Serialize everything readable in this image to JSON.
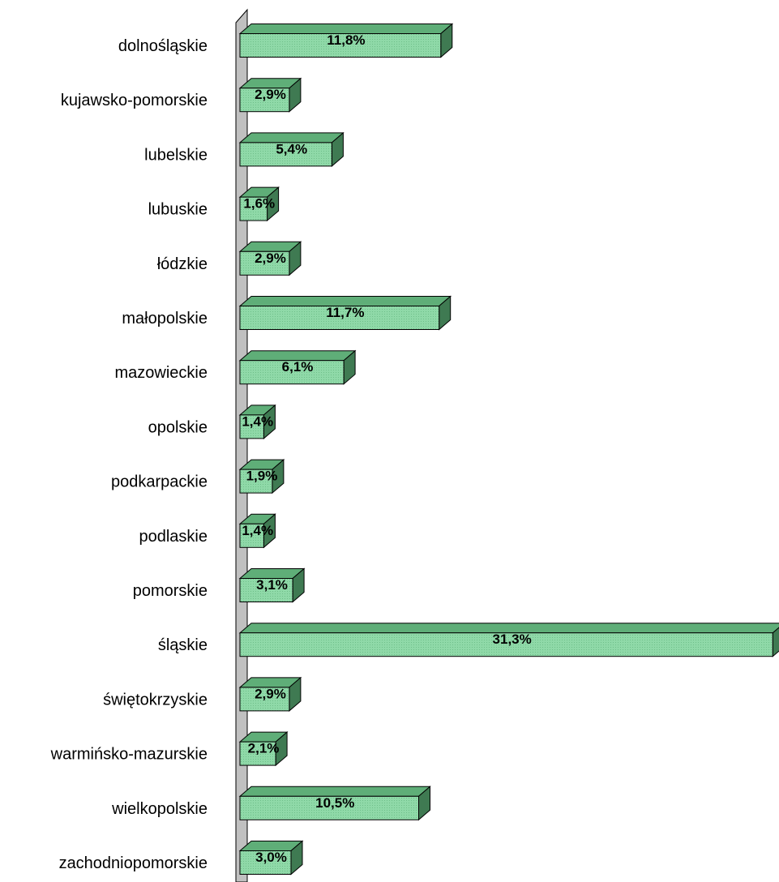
{
  "chart_data": {
    "type": "bar",
    "orientation": "horizontal",
    "style": "3d",
    "categories": [
      "dolnośląskie",
      "kujawsko-pomorskie",
      "lubelskie",
      "lubuskie",
      "łódzkie",
      "małopolskie",
      "mazowieckie",
      "opolskie",
      "podkarpackie",
      "podlaskie",
      "pomorskie",
      "śląskie",
      "świętokrzyskie",
      "warmińsko-mazurskie",
      "wielkopolskie",
      "zachodniopomorskie"
    ],
    "values": [
      11.8,
      2.9,
      5.4,
      1.6,
      2.9,
      11.7,
      6.1,
      1.4,
      1.9,
      1.4,
      3.1,
      31.3,
      2.9,
      2.1,
      10.5,
      3.0
    ],
    "data_labels": [
      "11,8%",
      "2,9%",
      "5,4%",
      "1,6%",
      "2,9%",
      "11,7%",
      "6,1%",
      "1,4%",
      "1,9%",
      "1,4%",
      "3,1%",
      "31,3%",
      "2,9%",
      "2,1%",
      "10,5%",
      "3,0%"
    ],
    "unit": "%",
    "xlim": [
      0,
      31.3
    ],
    "title": "",
    "xlabel": "",
    "ylabel": "",
    "grid": false,
    "legend": "none",
    "colors": {
      "bar_front": "#8fd9a8",
      "bar_top": "#5fae78",
      "bar_side": "#3f7a52",
      "bar_stroke": "#000000",
      "wall": "#c0c0c0"
    }
  }
}
